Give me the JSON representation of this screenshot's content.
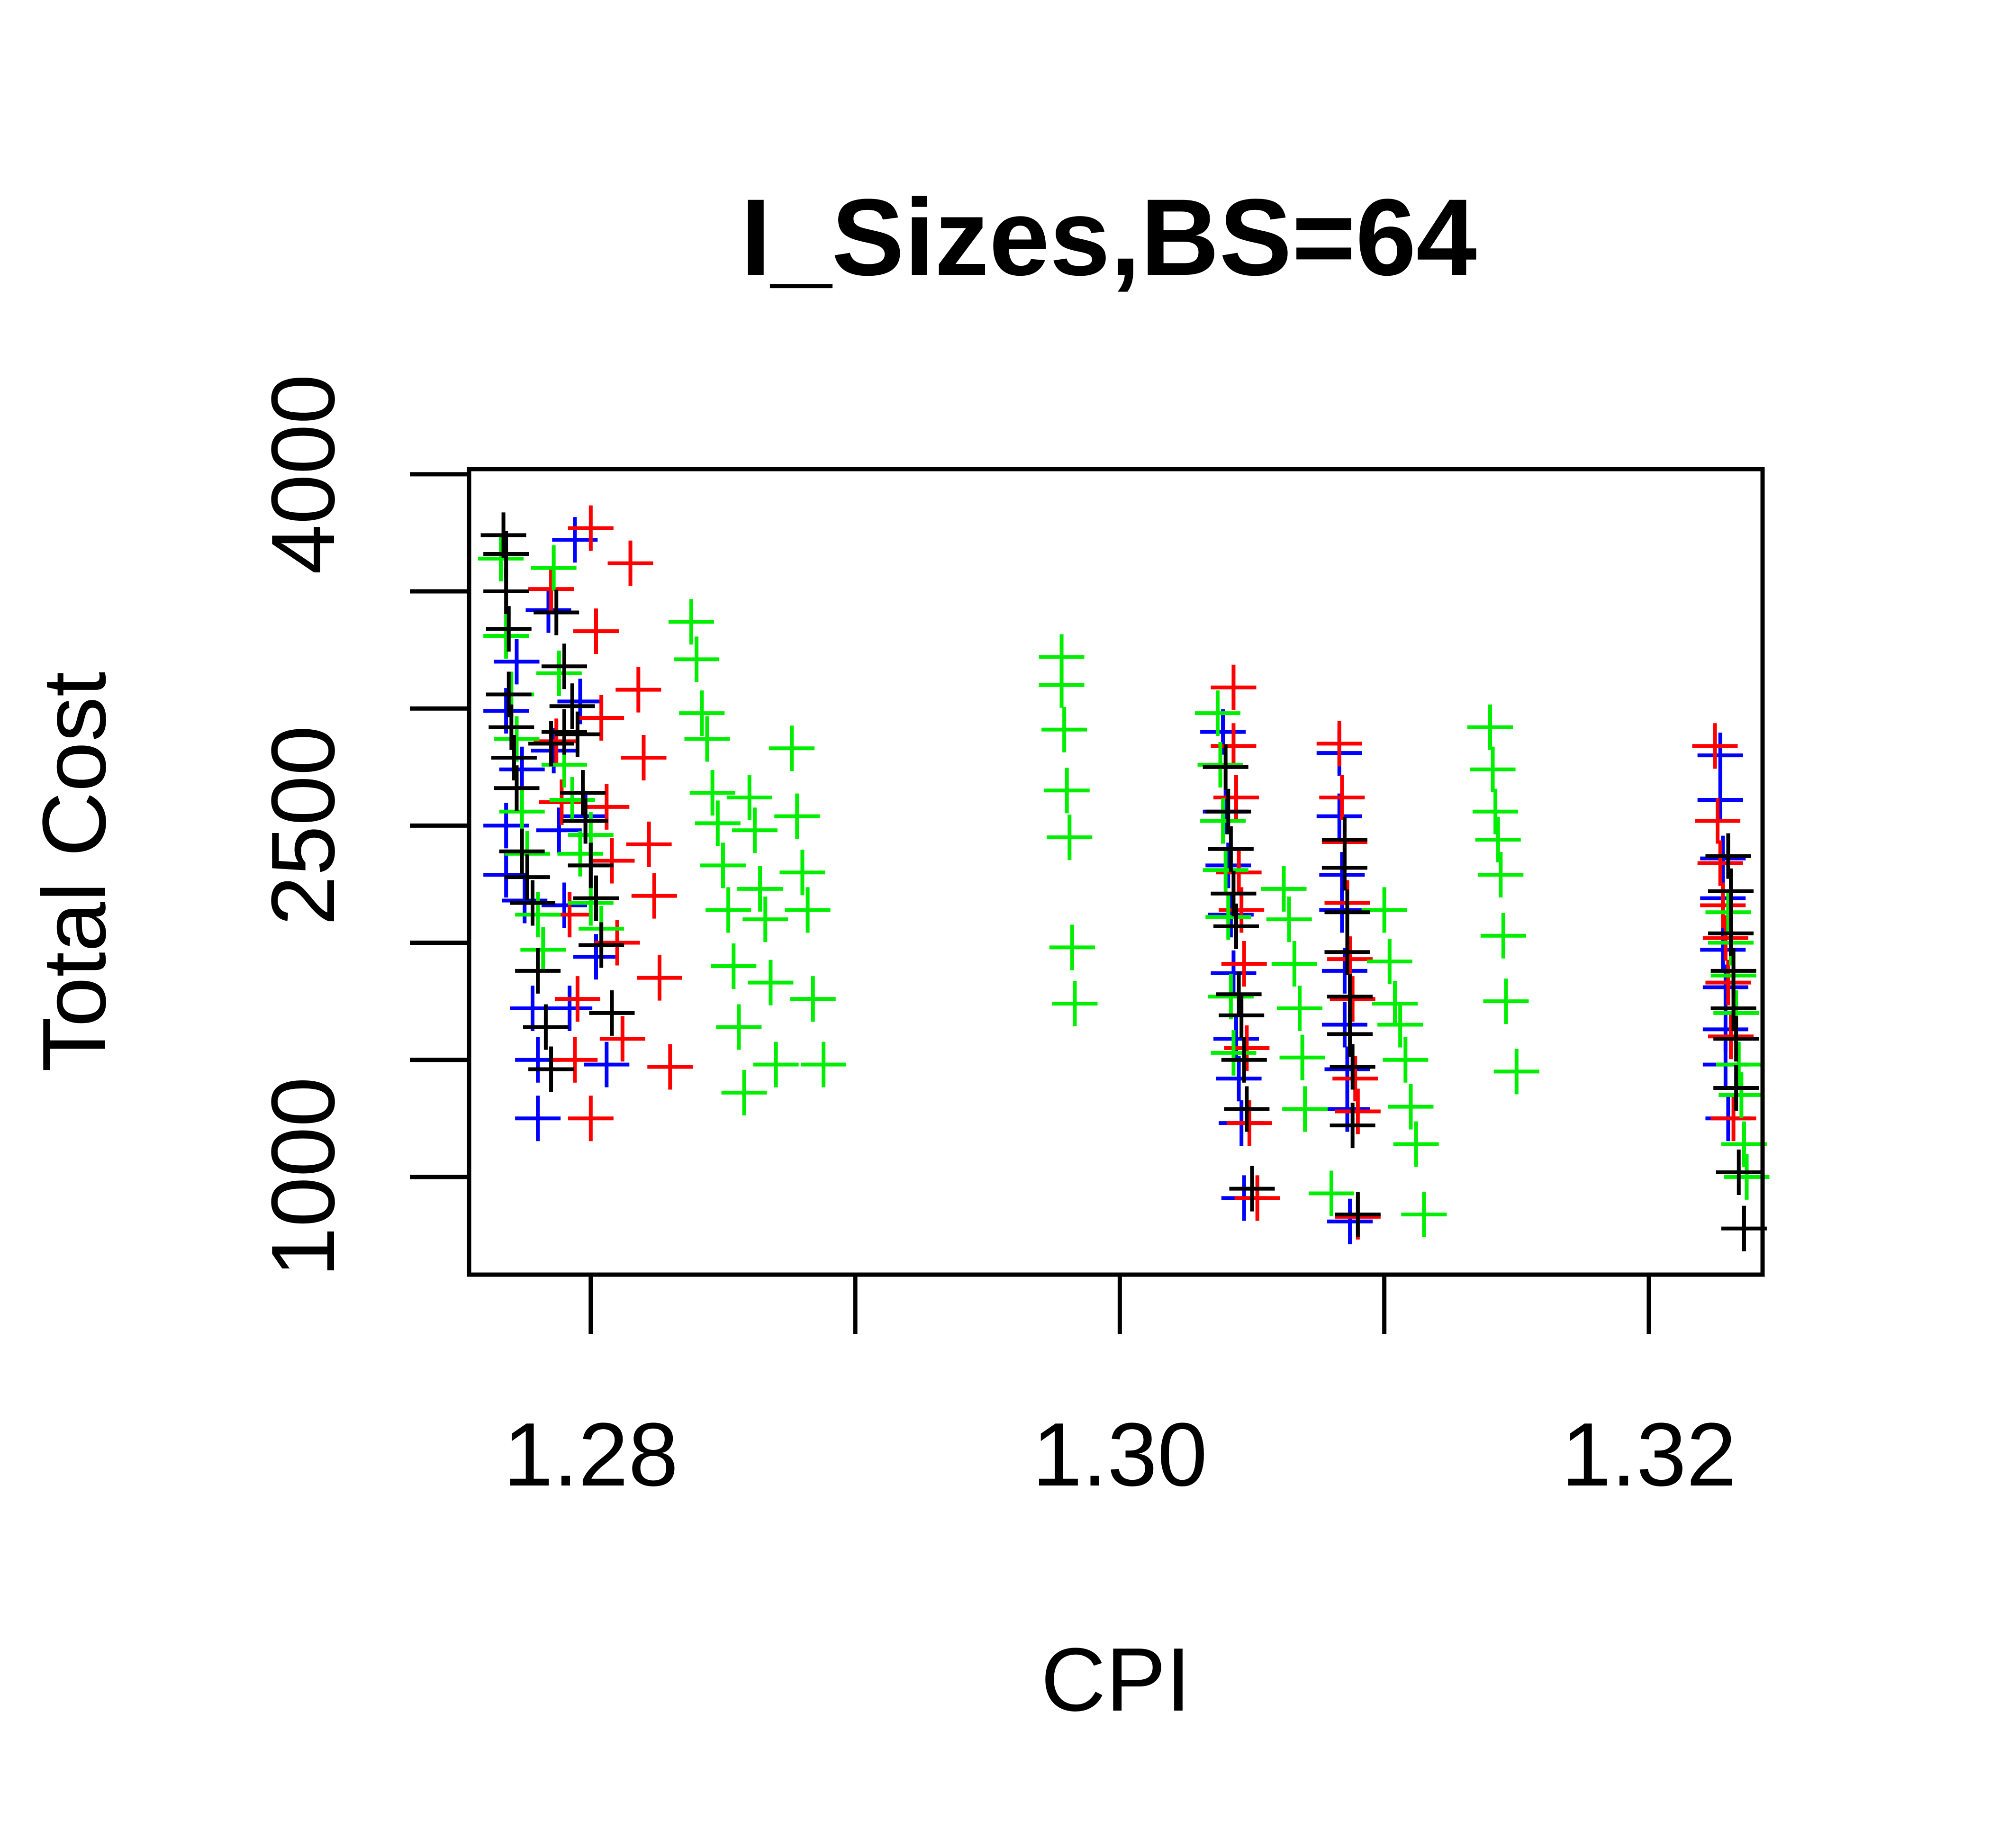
{
  "chart_data": {
    "type": "scatter",
    "title": "I_Sizes,BS=64",
    "xlabel": "CPI",
    "ylabel": "Total Cost",
    "xlim": [
      1.2754,
      1.3243
    ],
    "ylim": [
      583,
      4022
    ],
    "xticks": [
      1.28,
      1.29,
      1.3,
      1.31,
      1.32
    ],
    "xtick_labels": [
      "1.28",
      "",
      "1.30",
      "",
      "1.32"
    ],
    "yticks": [
      1000,
      1500,
      2000,
      2500,
      3000,
      3500,
      4000
    ],
    "ytick_labels": [
      "1000",
      "",
      "",
      "2500",
      "",
      "",
      "4000"
    ],
    "marker": "plus",
    "grid": false,
    "colors": [
      "#0000ff",
      "#ff0000",
      "#00ee00",
      "#000000"
    ],
    "series": [
      {
        "color": "#0000ff",
        "points": [
          [
            1.2768,
            2990
          ],
          [
            1.2768,
            2500
          ],
          [
            1.2768,
            2290
          ],
          [
            1.2772,
            3200
          ],
          [
            1.2774,
            2740
          ],
          [
            1.2775,
            2180
          ],
          [
            1.2778,
            1720
          ],
          [
            1.278,
            1500
          ],
          [
            1.278,
            1250
          ],
          [
            1.2784,
            3420
          ],
          [
            1.2786,
            2820
          ],
          [
            1.2788,
            2480
          ],
          [
            1.279,
            2160
          ],
          [
            1.2792,
            1720
          ],
          [
            1.2794,
            3720
          ],
          [
            1.2796,
            3030
          ],
          [
            1.2798,
            2540
          ],
          [
            1.28,
            2330
          ],
          [
            1.2802,
            1940
          ],
          [
            1.2806,
            1480
          ],
          [
            1.3039,
            2900
          ],
          [
            1.304,
            2560
          ],
          [
            1.3041,
            2330
          ],
          [
            1.3042,
            2120
          ],
          [
            1.3043,
            1870
          ],
          [
            1.3044,
            1590
          ],
          [
            1.3045,
            1420
          ],
          [
            1.3046,
            1230
          ],
          [
            1.3047,
            910
          ],
          [
            1.3083,
            2810
          ],
          [
            1.3083,
            2540
          ],
          [
            1.3084,
            2290
          ],
          [
            1.3084,
            2140
          ],
          [
            1.3085,
            1880
          ],
          [
            1.3085,
            1650
          ],
          [
            1.3086,
            1460
          ],
          [
            1.3086,
            1290
          ],
          [
            1.3087,
            810
          ],
          [
            1.3227,
            2800
          ],
          [
            1.3227,
            2610
          ],
          [
            1.3228,
            2360
          ],
          [
            1.3228,
            2190
          ],
          [
            1.3228,
            1970
          ],
          [
            1.3229,
            1810
          ],
          [
            1.3229,
            1630
          ],
          [
            1.3229,
            1480
          ],
          [
            1.323,
            1250
          ]
        ]
      },
      {
        "color": "#ff0000",
        "points": [
          [
            1.2785,
            3510
          ],
          [
            1.2787,
            2860
          ],
          [
            1.2789,
            2600
          ],
          [
            1.2792,
            2120
          ],
          [
            1.2795,
            1760
          ],
          [
            1.28,
            3770
          ],
          [
            1.2802,
            3330
          ],
          [
            1.2804,
            2960
          ],
          [
            1.2806,
            2580
          ],
          [
            1.2808,
            2350
          ],
          [
            1.281,
            2000
          ],
          [
            1.2812,
            1590
          ],
          [
            1.2815,
            3620
          ],
          [
            1.2818,
            3080
          ],
          [
            1.282,
            2790
          ],
          [
            1.2822,
            2420
          ],
          [
            1.2824,
            2200
          ],
          [
            1.2826,
            1850
          ],
          [
            1.283,
            1470
          ],
          [
            1.28,
            1250
          ],
          [
            1.2794,
            1500
          ],
          [
            1.3043,
            3090
          ],
          [
            1.3043,
            2840
          ],
          [
            1.3044,
            2620
          ],
          [
            1.3045,
            2300
          ],
          [
            1.3046,
            2140
          ],
          [
            1.3047,
            1910
          ],
          [
            1.3048,
            1550
          ],
          [
            1.3049,
            1230
          ],
          [
            1.3052,
            910
          ],
          [
            1.3083,
            2850
          ],
          [
            1.3084,
            2620
          ],
          [
            1.3085,
            2430
          ],
          [
            1.3086,
            2170
          ],
          [
            1.3087,
            1930
          ],
          [
            1.3088,
            1760
          ],
          [
            1.3089,
            1420
          ],
          [
            1.309,
            1280
          ],
          [
            1.309,
            830
          ],
          [
            1.3225,
            2840
          ],
          [
            1.3226,
            2520
          ],
          [
            1.3227,
            2340
          ],
          [
            1.3228,
            2160
          ],
          [
            1.3229,
            2020
          ],
          [
            1.323,
            1830
          ],
          [
            1.3231,
            1600
          ],
          [
            1.3232,
            1250
          ]
        ]
      },
      {
        "color": "#00ee00",
        "points": [
          [
            1.2766,
            3640
          ],
          [
            1.2768,
            3310
          ],
          [
            1.277,
            3060
          ],
          [
            1.2772,
            2870
          ],
          [
            1.2774,
            2560
          ],
          [
            1.2776,
            2380
          ],
          [
            1.278,
            2120
          ],
          [
            1.2782,
            1970
          ],
          [
            1.2786,
            3600
          ],
          [
            1.2788,
            3150
          ],
          [
            1.279,
            2900
          ],
          [
            1.2793,
            2610
          ],
          [
            1.2796,
            2380
          ],
          [
            1.28,
            2170
          ],
          [
            1.2804,
            2060
          ],
          [
            1.28,
            2460
          ],
          [
            1.279,
            2760
          ],
          [
            1.2838,
            3370
          ],
          [
            1.284,
            3210
          ],
          [
            1.2842,
            2980
          ],
          [
            1.2844,
            2870
          ],
          [
            1.2846,
            2640
          ],
          [
            1.2848,
            2510
          ],
          [
            1.285,
            2330
          ],
          [
            1.2852,
            2140
          ],
          [
            1.2854,
            1900
          ],
          [
            1.2856,
            1640
          ],
          [
            1.2858,
            1360
          ],
          [
            1.286,
            2620
          ],
          [
            1.2862,
            2480
          ],
          [
            1.2864,
            2230
          ],
          [
            1.2866,
            2100
          ],
          [
            1.2868,
            1830
          ],
          [
            1.287,
            1480
          ],
          [
            1.2876,
            2830
          ],
          [
            1.2878,
            2540
          ],
          [
            1.288,
            2300
          ],
          [
            1.2882,
            2140
          ],
          [
            1.2884,
            1760
          ],
          [
            1.2888,
            1480
          ],
          [
            1.2978,
            3220
          ],
          [
            1.2978,
            3100
          ],
          [
            1.2979,
            2910
          ],
          [
            1.298,
            2650
          ],
          [
            1.2981,
            2450
          ],
          [
            1.2982,
            1980
          ],
          [
            1.2983,
            1740
          ],
          [
            1.3037,
            2980
          ],
          [
            1.3038,
            2760
          ],
          [
            1.3039,
            2520
          ],
          [
            1.304,
            2310
          ],
          [
            1.3041,
            2110
          ],
          [
            1.3042,
            1770
          ],
          [
            1.3043,
            1530
          ],
          [
            1.3062,
            2230
          ],
          [
            1.3064,
            2100
          ],
          [
            1.3066,
            1910
          ],
          [
            1.3068,
            1720
          ],
          [
            1.3069,
            1510
          ],
          [
            1.307,
            1290
          ],
          [
            1.308,
            930
          ],
          [
            1.31,
            2140
          ],
          [
            1.3102,
            1920
          ],
          [
            1.3104,
            1740
          ],
          [
            1.3106,
            1650
          ],
          [
            1.3108,
            1500
          ],
          [
            1.311,
            1300
          ],
          [
            1.3112,
            1140
          ],
          [
            1.3115,
            840
          ],
          [
            1.314,
            2920
          ],
          [
            1.3141,
            2740
          ],
          [
            1.3142,
            2560
          ],
          [
            1.3143,
            2440
          ],
          [
            1.3144,
            2290
          ],
          [
            1.3145,
            2030
          ],
          [
            1.3146,
            1750
          ],
          [
            1.315,
            1450
          ],
          [
            1.323,
            2130
          ],
          [
            1.3231,
            2000
          ],
          [
            1.3232,
            1860
          ],
          [
            1.3233,
            1700
          ],
          [
            1.3234,
            1480
          ],
          [
            1.3235,
            1350
          ],
          [
            1.3236,
            1140
          ],
          [
            1.3237,
            1000
          ]
        ]
      },
      {
        "color": "#000000",
        "points": [
          [
            1.2767,
            3740
          ],
          [
            1.2768,
            3660
          ],
          [
            1.2768,
            3500
          ],
          [
            1.2769,
            3340
          ],
          [
            1.2769,
            3060
          ],
          [
            1.277,
            2920
          ],
          [
            1.2771,
            2790
          ],
          [
            1.2772,
            2660
          ],
          [
            1.2774,
            2390
          ],
          [
            1.2776,
            2280
          ],
          [
            1.2778,
            2170
          ],
          [
            1.278,
            1880
          ],
          [
            1.2783,
            1640
          ],
          [
            1.2785,
            1460
          ],
          [
            1.2787,
            3410
          ],
          [
            1.279,
            3180
          ],
          [
            1.2793,
            3010
          ],
          [
            1.2795,
            2890
          ],
          [
            1.2797,
            2640
          ],
          [
            1.2798,
            2520
          ],
          [
            1.28,
            2330
          ],
          [
            1.2802,
            2190
          ],
          [
            1.2804,
            1990
          ],
          [
            1.2808,
            1700
          ],
          [
            1.2785,
            2850
          ],
          [
            1.279,
            2900
          ],
          [
            1.304,
            2750
          ],
          [
            1.3041,
            2560
          ],
          [
            1.3042,
            2400
          ],
          [
            1.3043,
            2210
          ],
          [
            1.3044,
            2070
          ],
          [
            1.3045,
            1780
          ],
          [
            1.3046,
            1690
          ],
          [
            1.3047,
            1500
          ],
          [
            1.3048,
            1290
          ],
          [
            1.305,
            950
          ],
          [
            1.3085,
            2440
          ],
          [
            1.3085,
            2320
          ],
          [
            1.3086,
            2130
          ],
          [
            1.3086,
            1960
          ],
          [
            1.3087,
            1770
          ],
          [
            1.3087,
            1610
          ],
          [
            1.3088,
            1470
          ],
          [
            1.3088,
            1220
          ],
          [
            1.309,
            840
          ],
          [
            1.323,
            2370
          ],
          [
            1.3231,
            2220
          ],
          [
            1.3231,
            2040
          ],
          [
            1.3232,
            1880
          ],
          [
            1.3232,
            1720
          ],
          [
            1.3233,
            1590
          ],
          [
            1.3233,
            1380
          ],
          [
            1.3234,
            1020
          ],
          [
            1.3236,
            780
          ]
        ]
      }
    ]
  }
}
